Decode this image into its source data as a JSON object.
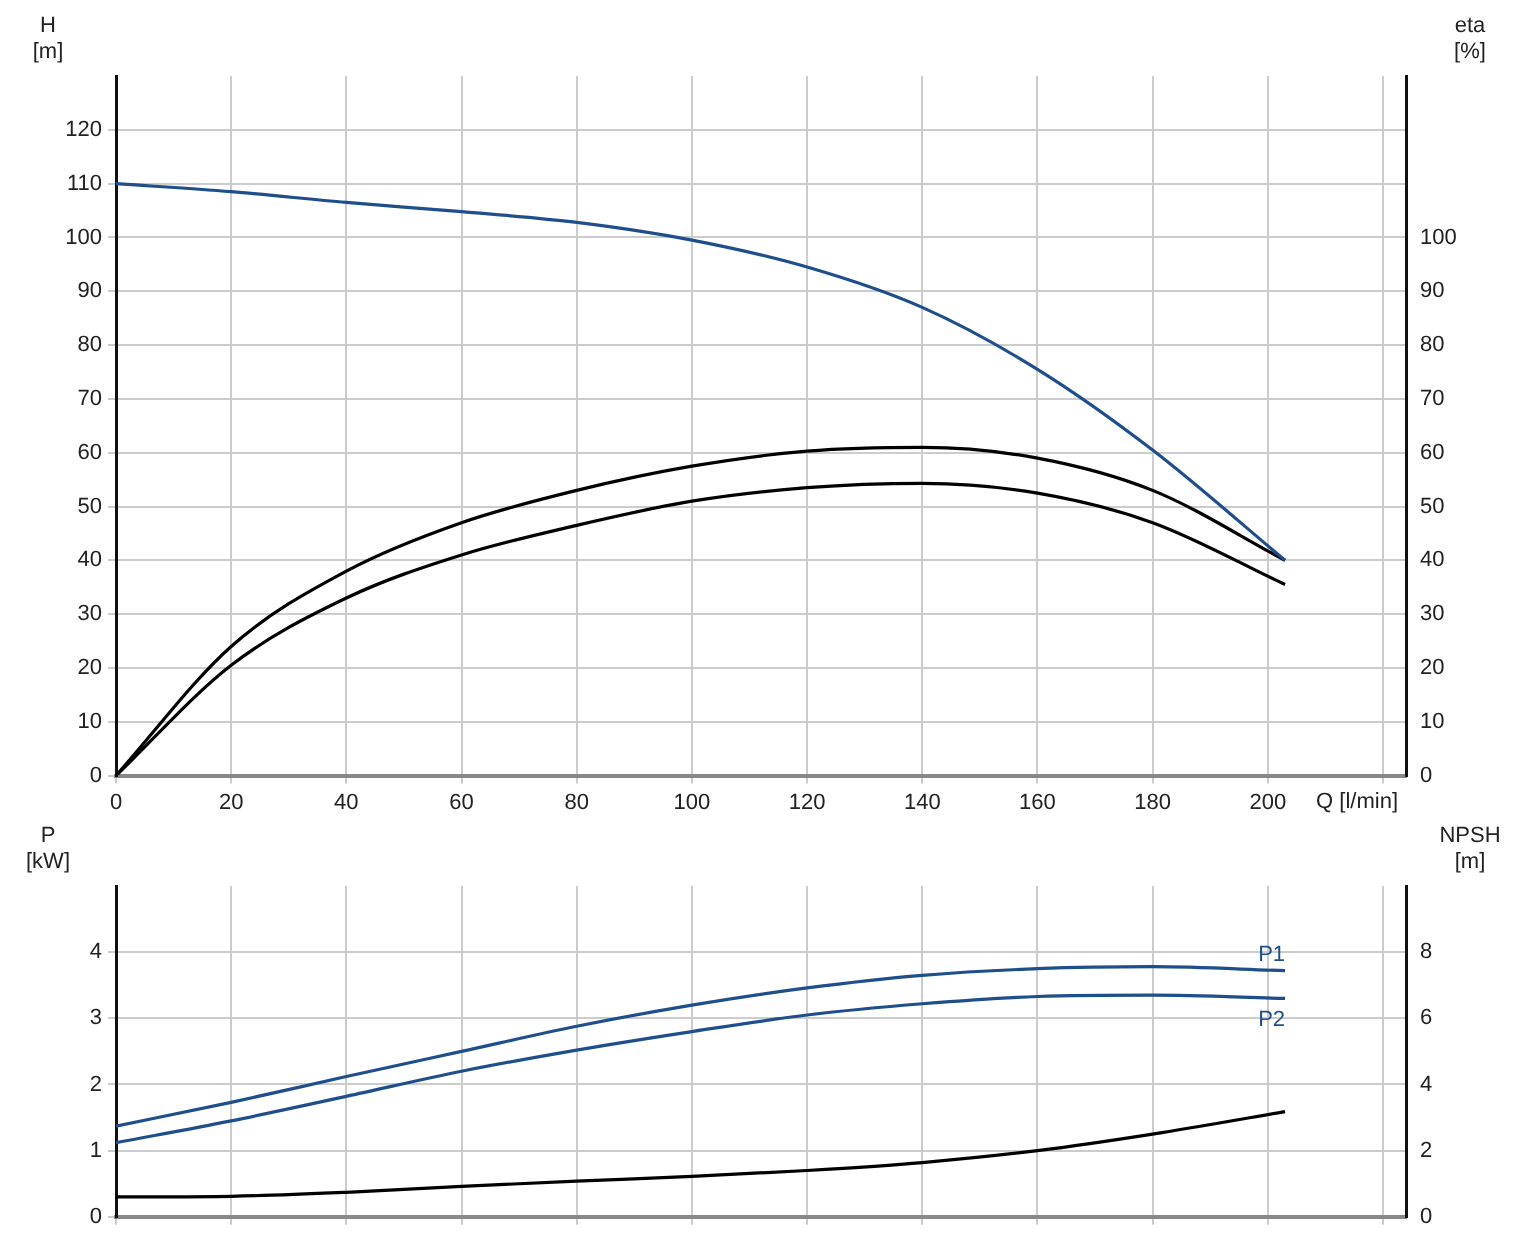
{
  "chart_data": [
    {
      "type": "line",
      "xlabel": "Q [l/min]",
      "ylabel": "H [m]",
      "y2label": "eta [%]",
      "x": [
        0,
        20,
        40,
        60,
        80,
        100,
        120,
        140,
        160,
        180,
        203
      ],
      "xlim": [
        0,
        224
      ],
      "xticks": [
        0,
        20,
        40,
        60,
        80,
        100,
        120,
        140,
        160,
        180,
        200,
        {
          "value": 220,
          "label": null
        }
      ],
      "ylim": [
        0,
        130
      ],
      "yticks": [
        0,
        10,
        20,
        30,
        40,
        50,
        60,
        70,
        80,
        90,
        100,
        110,
        120
      ],
      "y2lim": [
        0,
        130
      ],
      "y2ticks": [
        0,
        10,
        20,
        30,
        40,
        50,
        60,
        70,
        80,
        90,
        100
      ],
      "grid": true,
      "legend": false,
      "marker": "none",
      "line_style": "solid",
      "series": [
        {
          "color": "#1f4e8c",
          "values": [
            110,
            108.5,
            106.5,
            104.8,
            102.8,
            99.5,
            94.5,
            87,
            75.5,
            60.5,
            40
          ]
        },
        {
          "color": "#000000",
          "axis": "y2",
          "values": [
            0,
            24,
            38,
            47,
            53,
            57.5,
            60.3,
            61,
            59,
            53,
            40
          ]
        },
        {
          "color": "#000000",
          "axis": "y2",
          "values": [
            0,
            20.5,
            33,
            41,
            46.5,
            51,
            53.5,
            54.3,
            52.5,
            47,
            35.5
          ]
        }
      ]
    },
    {
      "type": "line",
      "ylabel": "P [kW]",
      "y2label": "NPSH [m]",
      "x": [
        0,
        20,
        40,
        60,
        80,
        100,
        120,
        140,
        160,
        180,
        203
      ],
      "xlim": [
        0,
        224
      ],
      "xticks": [
        0,
        20,
        40,
        60,
        80,
        100,
        120,
        140,
        160,
        180,
        200,
        220
      ],
      "ylim": [
        0,
        5
      ],
      "yticks": [
        0,
        1,
        2,
        3,
        4
      ],
      "y2lim": [
        0,
        10
      ],
      "y2ticks": [
        0,
        2,
        4,
        6,
        8
      ],
      "grid": true,
      "legend": false,
      "marker": "none",
      "line_style": "solid",
      "tick_labels": "y",
      "series": [
        {
          "name": "P1",
          "color": "#1f4e8c",
          "values": [
            1.37,
            1.73,
            2.12,
            2.5,
            2.88,
            3.2,
            3.46,
            3.65,
            3.75,
            3.78,
            3.72
          ]
        },
        {
          "name": "P2",
          "color": "#1f4e8c",
          "values": [
            1.12,
            1.45,
            1.82,
            2.2,
            2.52,
            2.8,
            3.05,
            3.22,
            3.33,
            3.35,
            3.3
          ]
        },
        {
          "color": "#000000",
          "axis": "y2",
          "values": [
            0.6,
            0.62,
            0.74,
            0.92,
            1.08,
            1.22,
            1.4,
            1.64,
            2.0,
            2.5,
            3.18
          ]
        }
      ]
    }
  ]
}
